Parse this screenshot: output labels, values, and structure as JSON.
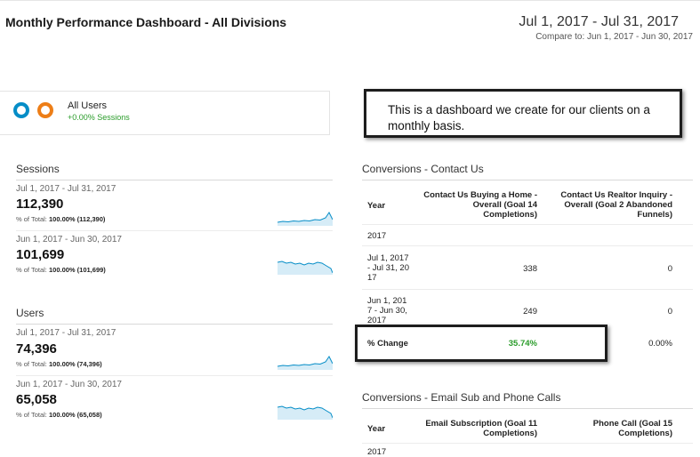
{
  "header": {
    "title": "Monthly Performance Dashboard - All Divisions",
    "date_range": "Jul 1, 2017 - Jul 31, 2017",
    "compare": "Compare to: Jun 1, 2017 - Jun 30, 2017"
  },
  "segment": {
    "name": "All Users",
    "sub": "+0.00% Sessions"
  },
  "annotation": "This is a dashboard we create for our clients on a monthly basis.",
  "sessions": {
    "title": "Sessions",
    "periods": [
      {
        "label": "Jul 1, 2017 - Jul 31, 2017",
        "value": "112,390",
        "total_prefix": "% of Total:",
        "total": "100.00% (112,390)"
      },
      {
        "label": "Jun 1, 2017 - Jun 30, 2017",
        "value": "101,699",
        "total_prefix": "% of Total:",
        "total": "100.00% (101,699)"
      }
    ]
  },
  "users": {
    "title": "Users",
    "periods": [
      {
        "label": "Jul 1, 2017 - Jul 31, 2017",
        "value": "74,396",
        "total_prefix": "% of Total:",
        "total": "100.00% (74,396)"
      },
      {
        "label": "Jun 1, 2017 - Jun 30, 2017",
        "value": "65,058",
        "total_prefix": "% of Total:",
        "total": "100.00% (65,058)"
      }
    ]
  },
  "contact_table": {
    "title": "Conversions - Contact Us",
    "col_year": "Year",
    "col_a": [
      "Contact Us Buying a Home -",
      "Overall (Goal 14",
      "Completions)"
    ],
    "col_b": [
      "Contact Us Realtor Inquiry -",
      "Overall (Goal 2 Abandoned",
      "Funnels)"
    ],
    "group": "2017",
    "row1": {
      "year": [
        "Jul 1, 2017",
        "- Jul 31, 20",
        "17"
      ],
      "a": "338",
      "b": "0"
    },
    "row2": {
      "year": [
        "Jun 1, 201",
        "7 - Jun 30,",
        "2017"
      ],
      "a": "249",
      "b": "0"
    },
    "change": {
      "label": "% Change",
      "a": "35.74%",
      "b": "0.00%"
    }
  },
  "email_table": {
    "title": "Conversions - Email Sub and Phone Calls",
    "col_year": "Year",
    "col_a": [
      "Email Subscription (Goal 11",
      "Completions)"
    ],
    "col_b": [
      "Phone Call (Goal 15",
      "Completions)"
    ],
    "group": "2017"
  },
  "colors": {
    "ring_blue": "#058dc7",
    "ring_orange": "#ed7e17",
    "positive": "#2a9c2a",
    "spark_line": "#058dc7",
    "spark_fill": "#d6ecf7"
  },
  "icons": {
    "segment_rings": "overlapping-circles-icon",
    "sparkline": "sparkline-chart"
  }
}
